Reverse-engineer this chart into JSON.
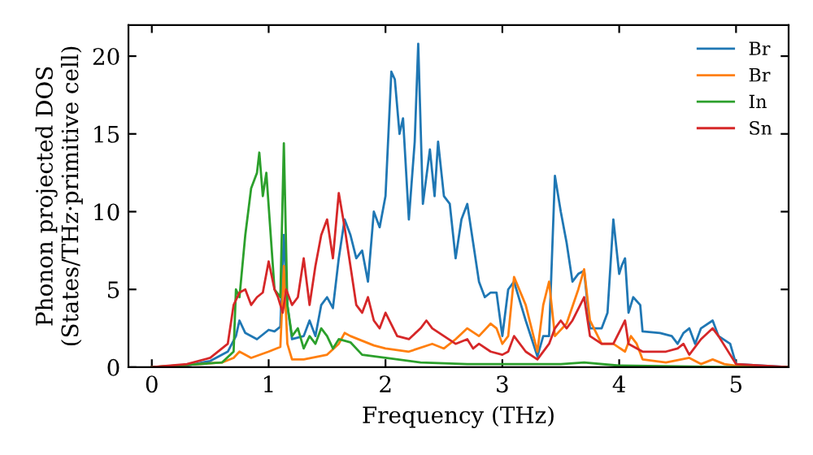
{
  "chart_data": {
    "type": "line",
    "xlabel": "Frequency (THz)",
    "ylabel": "Phonon projected DOS\n(States/THz·primitive cell)",
    "xlim": [
      -0.2,
      5.45
    ],
    "ylim": [
      0,
      22
    ],
    "xticks": [
      0,
      1,
      2,
      3,
      4,
      5
    ],
    "yticks": [
      0,
      5,
      10,
      15,
      20
    ],
    "grid": false,
    "legend": "top right",
    "marker": "none",
    "line_style": "solid",
    "series": [
      {
        "name": "Br",
        "color": "#1f77b4",
        "x": [
          0,
          0.3,
          0.5,
          0.65,
          0.72,
          0.75,
          0.8,
          0.9,
          1.0,
          1.05,
          1.1,
          1.13,
          1.16,
          1.2,
          1.3,
          1.35,
          1.4,
          1.45,
          1.5,
          1.55,
          1.6,
          1.65,
          1.7,
          1.75,
          1.8,
          1.85,
          1.9,
          1.95,
          2.0,
          2.05,
          2.08,
          2.12,
          2.15,
          2.2,
          2.25,
          2.28,
          2.32,
          2.38,
          2.42,
          2.45,
          2.5,
          2.55,
          2.6,
          2.65,
          2.7,
          2.75,
          2.8,
          2.85,
          2.9,
          2.95,
          3.0,
          3.05,
          3.1,
          3.2,
          3.3,
          3.35,
          3.4,
          3.45,
          3.5,
          3.55,
          3.6,
          3.65,
          3.7,
          3.75,
          3.85,
          3.9,
          3.95,
          4.0,
          4.02,
          4.05,
          4.08,
          4.12,
          4.18,
          4.2,
          4.35,
          4.45,
          4.5,
          4.55,
          4.6,
          4.65,
          4.7,
          4.8,
          4.85,
          4.95,
          5.0,
          5.45
        ],
        "values": [
          0,
          0.1,
          0.4,
          1.0,
          2.0,
          3.0,
          2.2,
          1.8,
          2.4,
          2.3,
          2.6,
          8.5,
          4.0,
          1.8,
          2.0,
          3.0,
          2.0,
          4.0,
          4.5,
          3.8,
          7.0,
          9.5,
          8.5,
          7.0,
          7.5,
          5.5,
          10.0,
          9.0,
          11.0,
          19.0,
          18.5,
          15.0,
          16.0,
          9.5,
          14.5,
          20.8,
          10.5,
          14.0,
          11.0,
          14.5,
          11.0,
          10.5,
          7.0,
          9.5,
          10.5,
          8.0,
          5.5,
          4.5,
          4.8,
          4.8,
          2.0,
          5.0,
          5.5,
          3.0,
          0.7,
          2.0,
          2.0,
          12.3,
          10.0,
          8.0,
          5.5,
          6.0,
          6.2,
          2.5,
          2.5,
          3.5,
          9.5,
          6.0,
          6.5,
          7.0,
          3.5,
          4.5,
          4.0,
          2.3,
          2.2,
          2.0,
          1.5,
          2.2,
          2.5,
          1.5,
          2.5,
          3.0,
          2.0,
          1.5,
          0.2,
          0
        ]
      },
      {
        "name": "Br",
        "color": "#ff7f0e",
        "x": [
          0,
          0.6,
          0.7,
          0.75,
          0.85,
          1.0,
          1.1,
          1.13,
          1.16,
          1.2,
          1.3,
          1.5,
          1.6,
          1.65,
          1.7,
          1.8,
          1.9,
          2.0,
          2.2,
          2.4,
          2.5,
          2.6,
          2.7,
          2.8,
          2.9,
          2.95,
          3.0,
          3.05,
          3.1,
          3.2,
          3.25,
          3.3,
          3.35,
          3.4,
          3.45,
          3.55,
          3.65,
          3.7,
          3.75,
          3.85,
          3.95,
          4.05,
          4.1,
          4.15,
          4.2,
          4.4,
          4.6,
          4.7,
          4.8,
          4.9,
          5.0,
          5.45
        ],
        "values": [
          0,
          0.3,
          0.6,
          1.0,
          0.6,
          1.0,
          1.3,
          6.5,
          1.5,
          0.5,
          0.5,
          0.8,
          1.5,
          2.2,
          2.0,
          1.7,
          1.4,
          1.2,
          1.0,
          1.5,
          1.2,
          1.8,
          2.5,
          2.0,
          2.8,
          2.5,
          1.5,
          2.0,
          5.8,
          4.0,
          2.5,
          1.0,
          4.0,
          5.5,
          2.0,
          2.8,
          5.0,
          6.3,
          3.0,
          1.5,
          1.5,
          1.0,
          2.0,
          1.5,
          0.5,
          0.3,
          0.6,
          0.2,
          0.5,
          0.2,
          0.1,
          0
        ]
      },
      {
        "name": "In",
        "color": "#2ca02c",
        "x": [
          0,
          0.6,
          0.7,
          0.72,
          0.75,
          0.8,
          0.85,
          0.9,
          0.92,
          0.95,
          0.98,
          1.05,
          1.1,
          1.13,
          1.16,
          1.2,
          1.25,
          1.3,
          1.35,
          1.4,
          1.45,
          1.5,
          1.55,
          1.6,
          1.7,
          1.8,
          2.0,
          2.3,
          2.7,
          3.5,
          3.7,
          4.0,
          5.0,
          5.45
        ],
        "values": [
          0,
          0.3,
          1.0,
          5.0,
          4.5,
          8.5,
          11.5,
          12.5,
          13.8,
          11.0,
          12.5,
          5.0,
          4.5,
          14.4,
          4.0,
          2.0,
          2.5,
          1.2,
          2.0,
          1.5,
          2.5,
          2.0,
          1.2,
          1.8,
          1.6,
          0.8,
          0.6,
          0.3,
          0.2,
          0.2,
          0.3,
          0.1,
          0.0,
          0
        ]
      },
      {
        "name": "Sn",
        "color": "#d62728",
        "x": [
          0,
          0.3,
          0.5,
          0.65,
          0.7,
          0.75,
          0.8,
          0.85,
          0.9,
          0.95,
          1.0,
          1.05,
          1.08,
          1.12,
          1.15,
          1.2,
          1.25,
          1.3,
          1.35,
          1.4,
          1.45,
          1.5,
          1.55,
          1.6,
          1.65,
          1.7,
          1.75,
          1.8,
          1.85,
          1.9,
          1.95,
          2.0,
          2.1,
          2.2,
          2.3,
          2.35,
          2.4,
          2.5,
          2.6,
          2.7,
          2.75,
          2.8,
          2.9,
          3.0,
          3.05,
          3.1,
          3.2,
          3.3,
          3.4,
          3.45,
          3.5,
          3.55,
          3.6,
          3.7,
          3.75,
          3.85,
          3.95,
          4.05,
          4.08,
          4.2,
          4.4,
          4.5,
          4.55,
          4.6,
          4.7,
          4.8,
          4.85,
          5.0,
          5.45
        ],
        "values": [
          0,
          0.2,
          0.6,
          1.5,
          4.0,
          4.8,
          5.0,
          4.0,
          4.5,
          4.8,
          6.8,
          5.0,
          4.5,
          3.5,
          5.0,
          4.0,
          4.5,
          7.0,
          4.0,
          6.5,
          8.5,
          9.5,
          7.0,
          11.2,
          9.0,
          6.5,
          4.0,
          3.5,
          4.5,
          3.0,
          2.5,
          3.5,
          2.0,
          1.8,
          2.5,
          3.0,
          2.5,
          2.0,
          1.5,
          1.8,
          1.2,
          1.5,
          1.0,
          0.8,
          1.0,
          2.0,
          1.0,
          0.5,
          1.5,
          2.5,
          3.0,
          2.5,
          3.0,
          4.5,
          2.0,
          1.5,
          1.5,
          3.0,
          1.5,
          1.0,
          1.0,
          1.2,
          1.5,
          0.8,
          1.8,
          2.5,
          2.0,
          0.2,
          0
        ]
      }
    ]
  }
}
